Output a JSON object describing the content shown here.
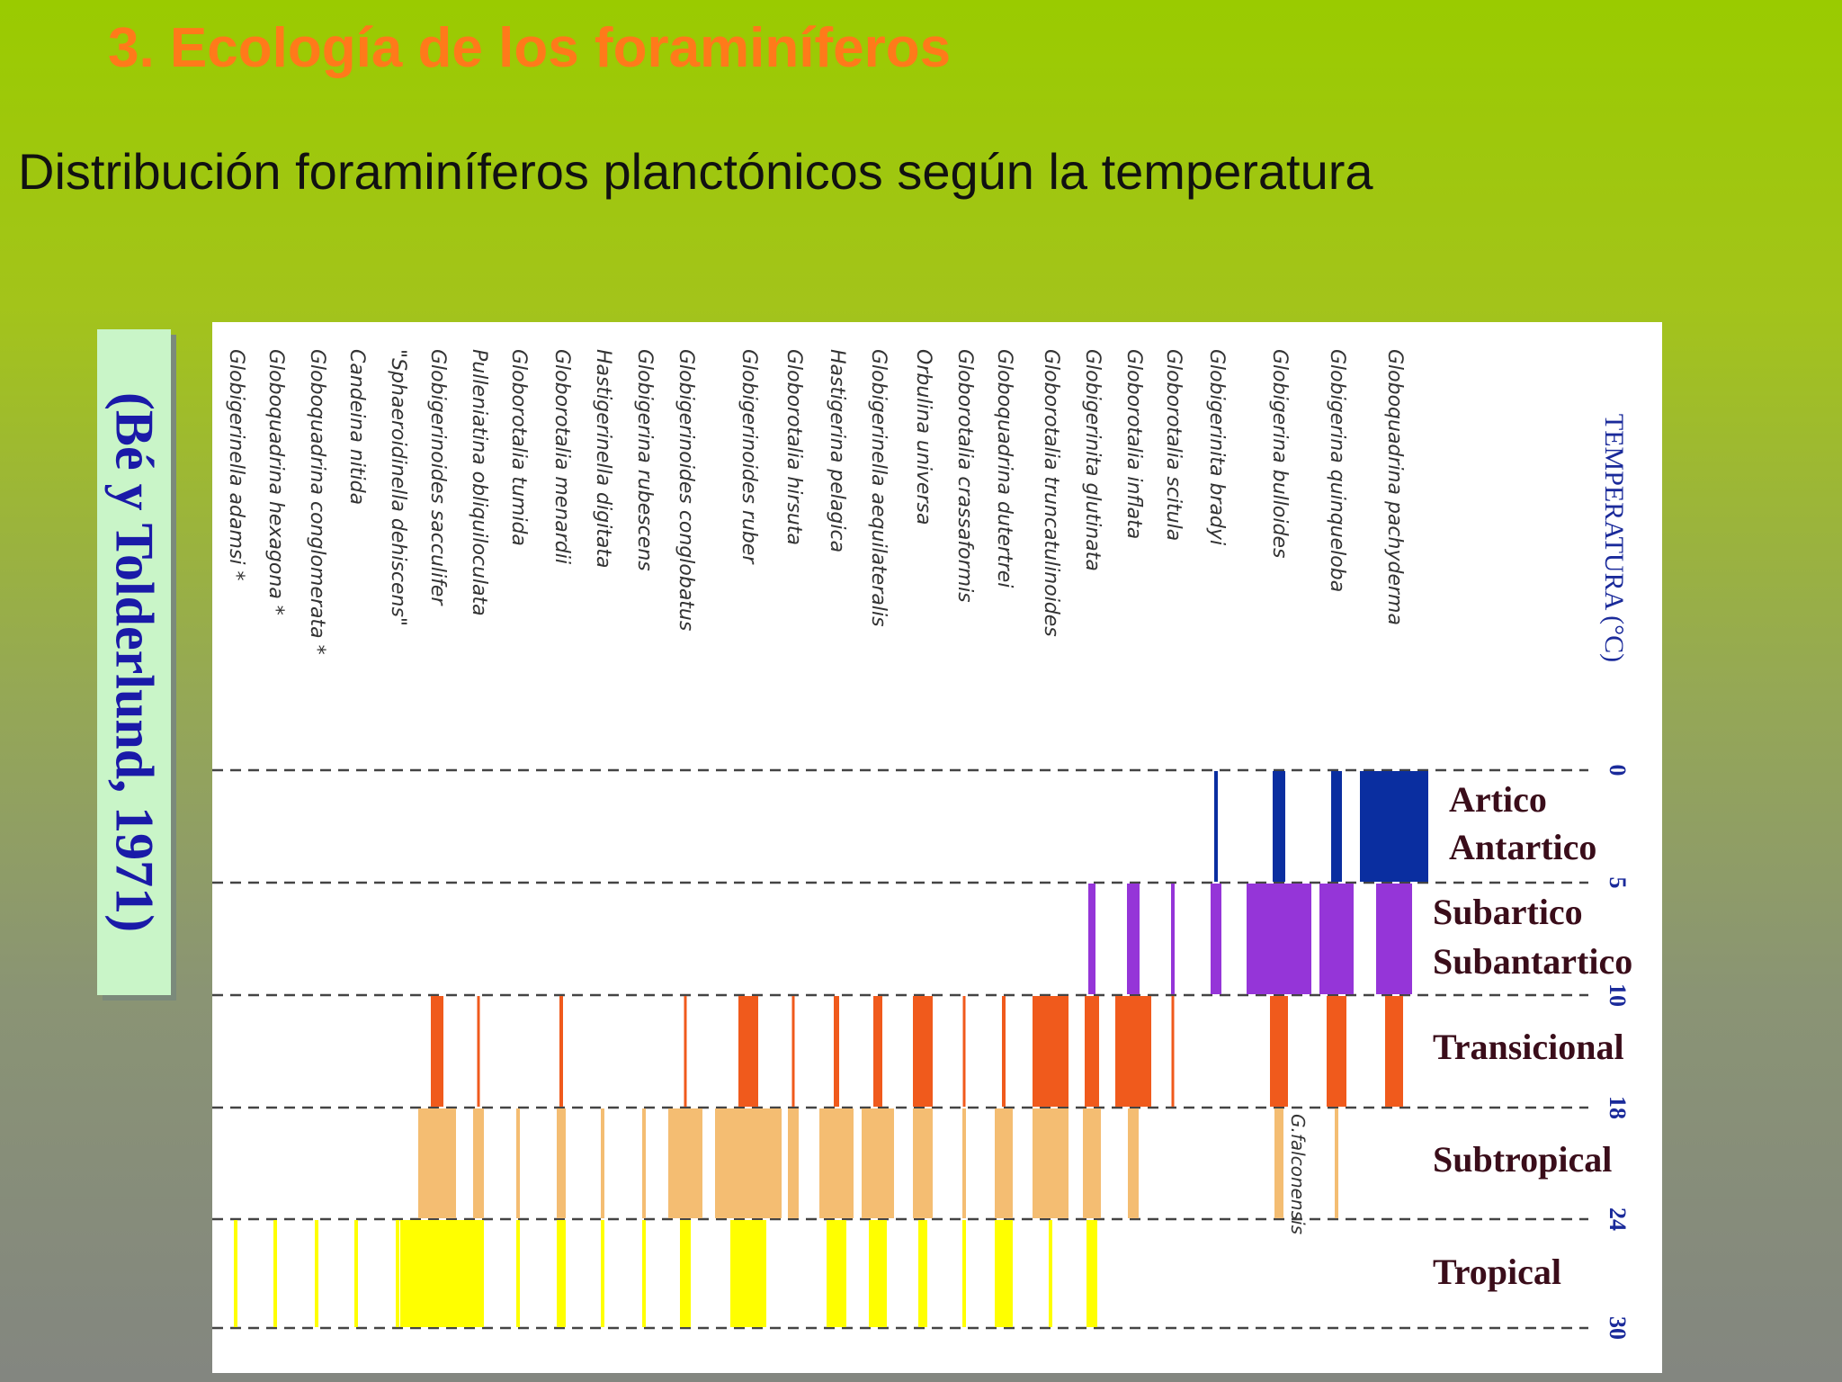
{
  "slide": {
    "title": "3. Ecología de los foraminíferos",
    "subtitle": "Distribución foraminíferos planctónicos según la temperatura",
    "citation": "(Bé y Tolderlund, 1971)"
  },
  "colors": {
    "arctic": "#0a2ea0",
    "subarctic": "#9535d8",
    "transitional": "#f05a1c",
    "subtropical": "#f4bd72",
    "tropical": "#ffff00",
    "zone_label": "#3a0d1a",
    "temp_label": "#1a2a9a"
  },
  "chart_data": {
    "type": "range-diagram",
    "axis_label": "TEMPERATURA (°C)",
    "temperature_ticks": [
      "0",
      "5",
      "10",
      "18",
      "24",
      "30"
    ],
    "zones": [
      {
        "name_lines": [
          "Artico",
          "Antartico"
        ]
      },
      {
        "name_lines": [
          "Subartico",
          "Subantartico"
        ]
      },
      {
        "name_lines": [
          "Transicional"
        ]
      },
      {
        "name_lines": [
          "Subtropical"
        ]
      },
      {
        "name_lines": [
          "Tropical"
        ]
      }
    ],
    "annotation": "G.falconensis",
    "species": [
      "Globigerinella adamsi *",
      "Globoquadrina hexagona *",
      "Globoquadrina conglomerata *",
      "Candeina nitida",
      "\"Sphaeroidinella dehiscens\"",
      "Globigerinoides sacculifer",
      "Pulleniatina obliquiloculata",
      "Globorotalia tumida",
      "Globorotalia menardii",
      "Hastigerinella digitata",
      "Globigerina rubescens",
      "Globigerinoides conglobatus",
      "Globigerinoides ruber",
      "Globorotalia hirsuta",
      "Hastigerina pelagica",
      "Globigerinella aequilateralis",
      "Orbulina universa",
      "Globorotalia crassaformis",
      "Globoquadrina dutertrei",
      "Globorotalia truncatulinoides",
      "Globigerinita glutinata",
      "Globorotalia inflata",
      "Globorotalia scitula",
      "Globigerinita bradyi",
      "Globigerina bulloides",
      "Globigerina quinqueloba",
      "Globoquadrina pachyderma"
    ]
  }
}
